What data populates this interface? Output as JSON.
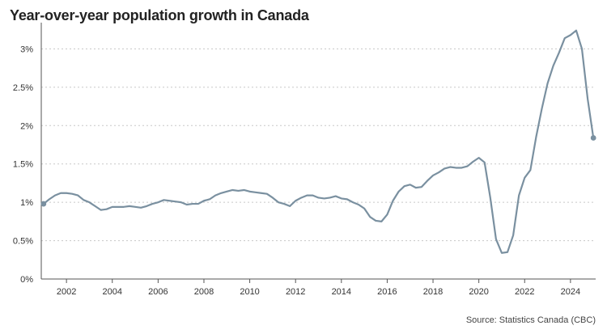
{
  "chart_data": {
    "type": "line",
    "title": "Year-over-year population growth in Canada",
    "source": "Source: Statistics Canada (CBC)",
    "xlabel": "",
    "ylabel": "",
    "xlim": [
      2000.9,
      2025.1
    ],
    "ylim": [
      0,
      3.3
    ],
    "x_ticks": [
      2002,
      2004,
      2006,
      2008,
      2010,
      2012,
      2014,
      2016,
      2018,
      2020,
      2022,
      2024
    ],
    "x_tick_labels": [
      "2002",
      "2004",
      "2006",
      "2008",
      "2010",
      "2012",
      "2014",
      "2016",
      "2018",
      "2020",
      "2022",
      "2024"
    ],
    "y_ticks": [
      0,
      0.5,
      1,
      1.5,
      2,
      2.5,
      3
    ],
    "y_tick_labels": [
      "0%",
      "0.5%",
      "1%",
      "1.5%",
      "2%",
      "2.5%",
      "3%"
    ],
    "grid": "horizontal dotted",
    "colors": {
      "line": "#7a90a0",
      "grid": "#c8c8c8",
      "axis": "#555555"
    },
    "series": [
      {
        "x": [
          2001.0,
          2001.25,
          2001.5,
          2001.75,
          2002.0,
          2002.25,
          2002.5,
          2002.75,
          2003.0,
          2003.25,
          2003.5,
          2003.75,
          2004.0,
          2004.25,
          2004.5,
          2004.75,
          2005.0,
          2005.25,
          2005.5,
          2005.75,
          2006.0,
          2006.25,
          2006.5,
          2006.75,
          2007.0,
          2007.25,
          2007.5,
          2007.75,
          2008.0,
          2008.25,
          2008.5,
          2008.75,
          2009.0,
          2009.25,
          2009.5,
          2009.75,
          2010.0,
          2010.25,
          2010.5,
          2010.75,
          2011.0,
          2011.25,
          2011.5,
          2011.75,
          2012.0,
          2012.25,
          2012.5,
          2012.75,
          2013.0,
          2013.25,
          2013.5,
          2013.75,
          2014.0,
          2014.25,
          2014.5,
          2014.75,
          2015.0,
          2015.25,
          2015.5,
          2015.75,
          2016.0,
          2016.25,
          2016.5,
          2016.75,
          2017.0,
          2017.25,
          2017.5,
          2017.75,
          2018.0,
          2018.25,
          2018.5,
          2018.75,
          2019.0,
          2019.25,
          2019.5,
          2019.75,
          2020.0,
          2020.25,
          2020.5,
          2020.75,
          2021.0,
          2021.25,
          2021.5,
          2021.75,
          2022.0,
          2022.25,
          2022.5,
          2022.75,
          2023.0,
          2023.25,
          2023.5,
          2023.75,
          2024.0,
          2024.25,
          2024.5,
          2024.75,
          2025.0
        ],
        "y": [
          0.98,
          1.04,
          1.09,
          1.12,
          1.12,
          1.11,
          1.09,
          1.03,
          1.0,
          0.95,
          0.9,
          0.91,
          0.94,
          0.94,
          0.94,
          0.95,
          0.94,
          0.93,
          0.95,
          0.98,
          1.0,
          1.03,
          1.02,
          1.01,
          1.0,
          0.97,
          0.98,
          0.98,
          1.02,
          1.04,
          1.09,
          1.12,
          1.14,
          1.16,
          1.15,
          1.16,
          1.14,
          1.13,
          1.12,
          1.11,
          1.06,
          1.0,
          0.98,
          0.95,
          1.02,
          1.06,
          1.09,
          1.09,
          1.06,
          1.05,
          1.06,
          1.08,
          1.05,
          1.04,
          1.0,
          0.97,
          0.92,
          0.81,
          0.76,
          0.75,
          0.84,
          1.02,
          1.14,
          1.21,
          1.23,
          1.19,
          1.2,
          1.28,
          1.35,
          1.39,
          1.44,
          1.46,
          1.45,
          1.45,
          1.47,
          1.53,
          1.58,
          1.52,
          1.06,
          0.52,
          0.34,
          0.35,
          0.57,
          1.09,
          1.32,
          1.42,
          1.85,
          2.22,
          2.55,
          2.78,
          2.95,
          3.14,
          3.18,
          3.24,
          3.0,
          2.35,
          1.84
        ]
      }
    ]
  }
}
